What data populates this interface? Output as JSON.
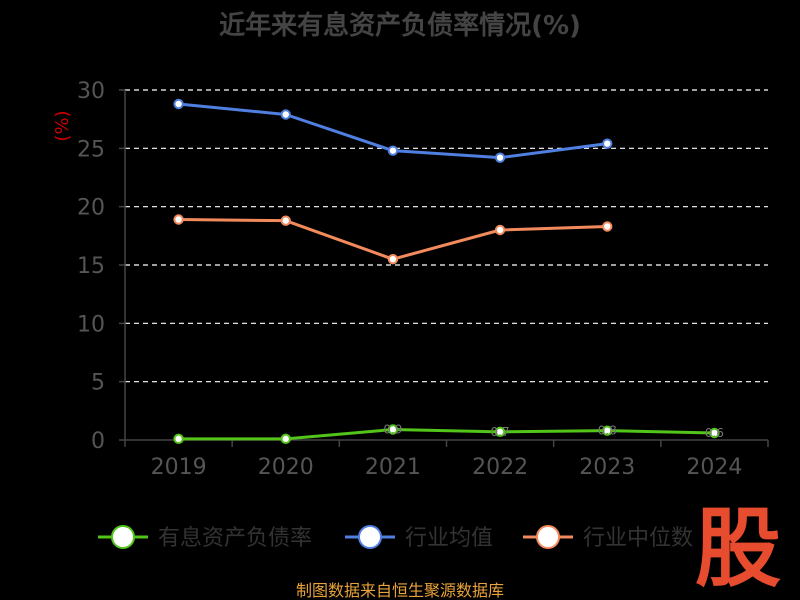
{
  "colors": {
    "background": "#000000",
    "title": "#444444",
    "ylabel": "#cc0000",
    "source": "#e8a33a",
    "watermark": "#e84c2f"
  },
  "watermark": "股",
  "source_text": "制图数据来自恒生聚源数据库",
  "chart_data": {
    "type": "line",
    "title": "近年来有息资产负债率情况(%)",
    "ylabel": "(%)",
    "xlabel": "",
    "categories": [
      "2019",
      "2020",
      "2021",
      "2022",
      "2023",
      "2024"
    ],
    "yticks": [
      "0",
      "5",
      "10",
      "15",
      "20",
      "25",
      "30"
    ],
    "ylim": [
      0,
      30
    ],
    "grid": true,
    "legend_position": "bottom",
    "series": [
      {
        "name": "有息资产负债率",
        "color": "#52c41a",
        "values": [
          0.1,
          0.1,
          0.9,
          0.7,
          0.8,
          0.6
        ],
        "data_labels": [
          "",
          "",
          "0.9",
          "0.7",
          "0.8",
          "0.6"
        ]
      },
      {
        "name": "行业均值",
        "color": "#4f7fe0",
        "values": [
          28.8,
          27.9,
          24.8,
          24.2,
          25.4,
          null
        ]
      },
      {
        "name": "行业中位数",
        "color": "#f28a5c",
        "values": [
          18.9,
          18.8,
          15.5,
          18.0,
          18.3,
          null
        ]
      }
    ]
  }
}
